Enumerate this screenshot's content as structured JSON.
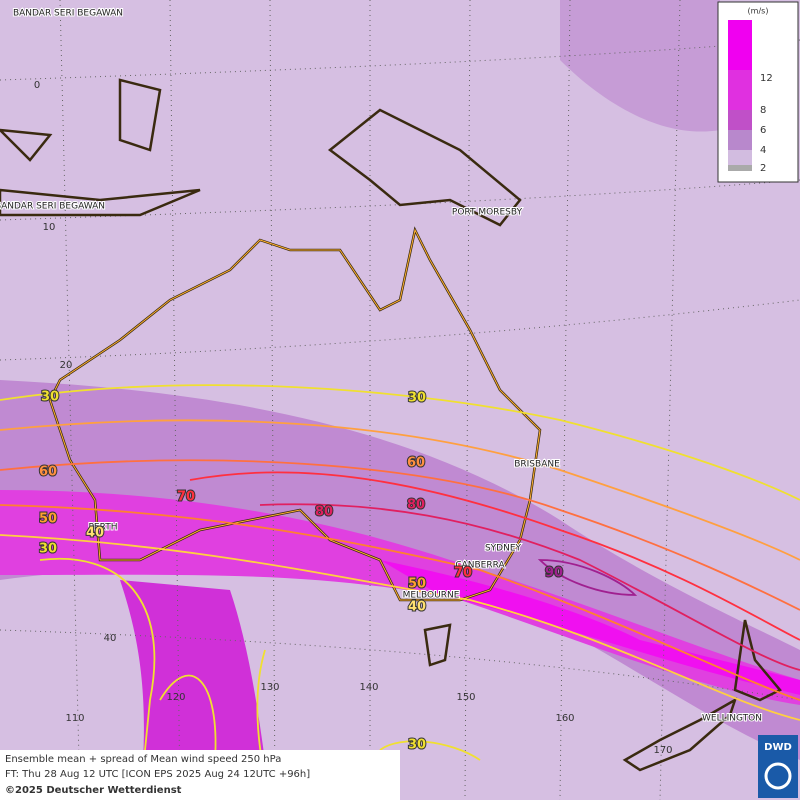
{
  "map": {
    "cities": [
      "BANDAR SERI BEGAWAN",
      "BANDAR SERI BEGAWAN",
      "PORT MORESBY",
      "BRISBANE",
      "SYDNEY",
      "CANBERRA",
      "MELBOURNE",
      "PERTH",
      "WELLINGTON"
    ],
    "graticule_labels": [
      0,
      10,
      20,
      40,
      110,
      120,
      130,
      140,
      150,
      160,
      170
    ],
    "contour_labels": [
      30,
      30,
      60,
      60,
      70,
      80,
      80,
      50,
      40,
      30,
      90,
      70,
      50,
      40,
      30
    ],
    "legend": {
      "unit": "(m/s)",
      "ticks": [
        2,
        4,
        6,
        8,
        12
      ]
    },
    "footer": {
      "line1": "Ensemble mean + spread of Mean wind speed 250 hPa",
      "line2": "FT: Thu 28 Aug 12 UTC [ICON EPS 2025 Aug 24 12UTC +96h]",
      "copyright": "©2025 Deutscher Wetterdienst"
    },
    "logo": "DWD"
  }
}
